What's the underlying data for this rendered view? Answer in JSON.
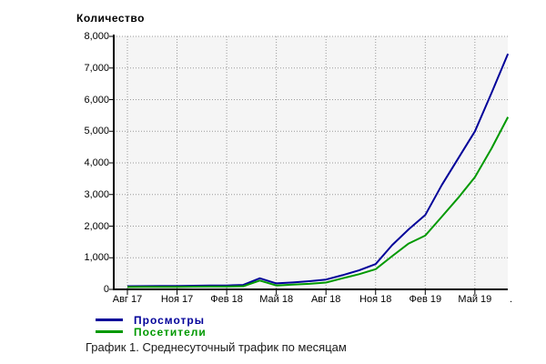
{
  "chart": {
    "title": "Количество",
    "caption": "График 1. Среднесуточный трафик по месяцам",
    "legend": [
      {
        "label": "Просмотры",
        "color": "#000099"
      },
      {
        "label": "Посетители",
        "color": "#009900"
      }
    ]
  },
  "chart_data": {
    "type": "line",
    "title": "Количество",
    "xlabel": "",
    "ylabel": "Количество",
    "ylim": [
      0,
      8000
    ],
    "y_step": 1000,
    "y_tick_labels": [
      "0",
      "1,000",
      "2,000",
      "3,000",
      "4,000",
      "5,000",
      "6,000",
      "7,000",
      "8,000"
    ],
    "x_tick_labels": [
      "Авг 17",
      "Ноя 17",
      "Фев 18",
      "Май 18",
      "Авг 18",
      "Ноя 18",
      "Фев 19",
      "Май 19"
    ],
    "x_tick_clipped_label": ".",
    "months_per_tick": 3,
    "grid": {
      "horizontal": true,
      "vertical": true,
      "style": "dotted"
    },
    "legend_position": "bottom-left",
    "plot_background": "#f5f5f5",
    "grid_color": "#999999",
    "axis_color": "#000000",
    "series": [
      {
        "name": "Просмотры",
        "color": "#000099",
        "values": [
          100,
          105,
          110,
          110,
          115,
          120,
          125,
          140,
          350,
          190,
          220,
          260,
          310,
          450,
          600,
          800,
          1400,
          1900,
          2350,
          3300,
          4150,
          5000,
          6200,
          7450
        ]
      },
      {
        "name": "Посетители",
        "color": "#009900",
        "values": [
          75,
          78,
          80,
          82,
          85,
          88,
          90,
          100,
          280,
          125,
          150,
          175,
          215,
          350,
          480,
          640,
          1050,
          1450,
          1700,
          2300,
          2900,
          3550,
          4450,
          5450
        ]
      }
    ]
  }
}
